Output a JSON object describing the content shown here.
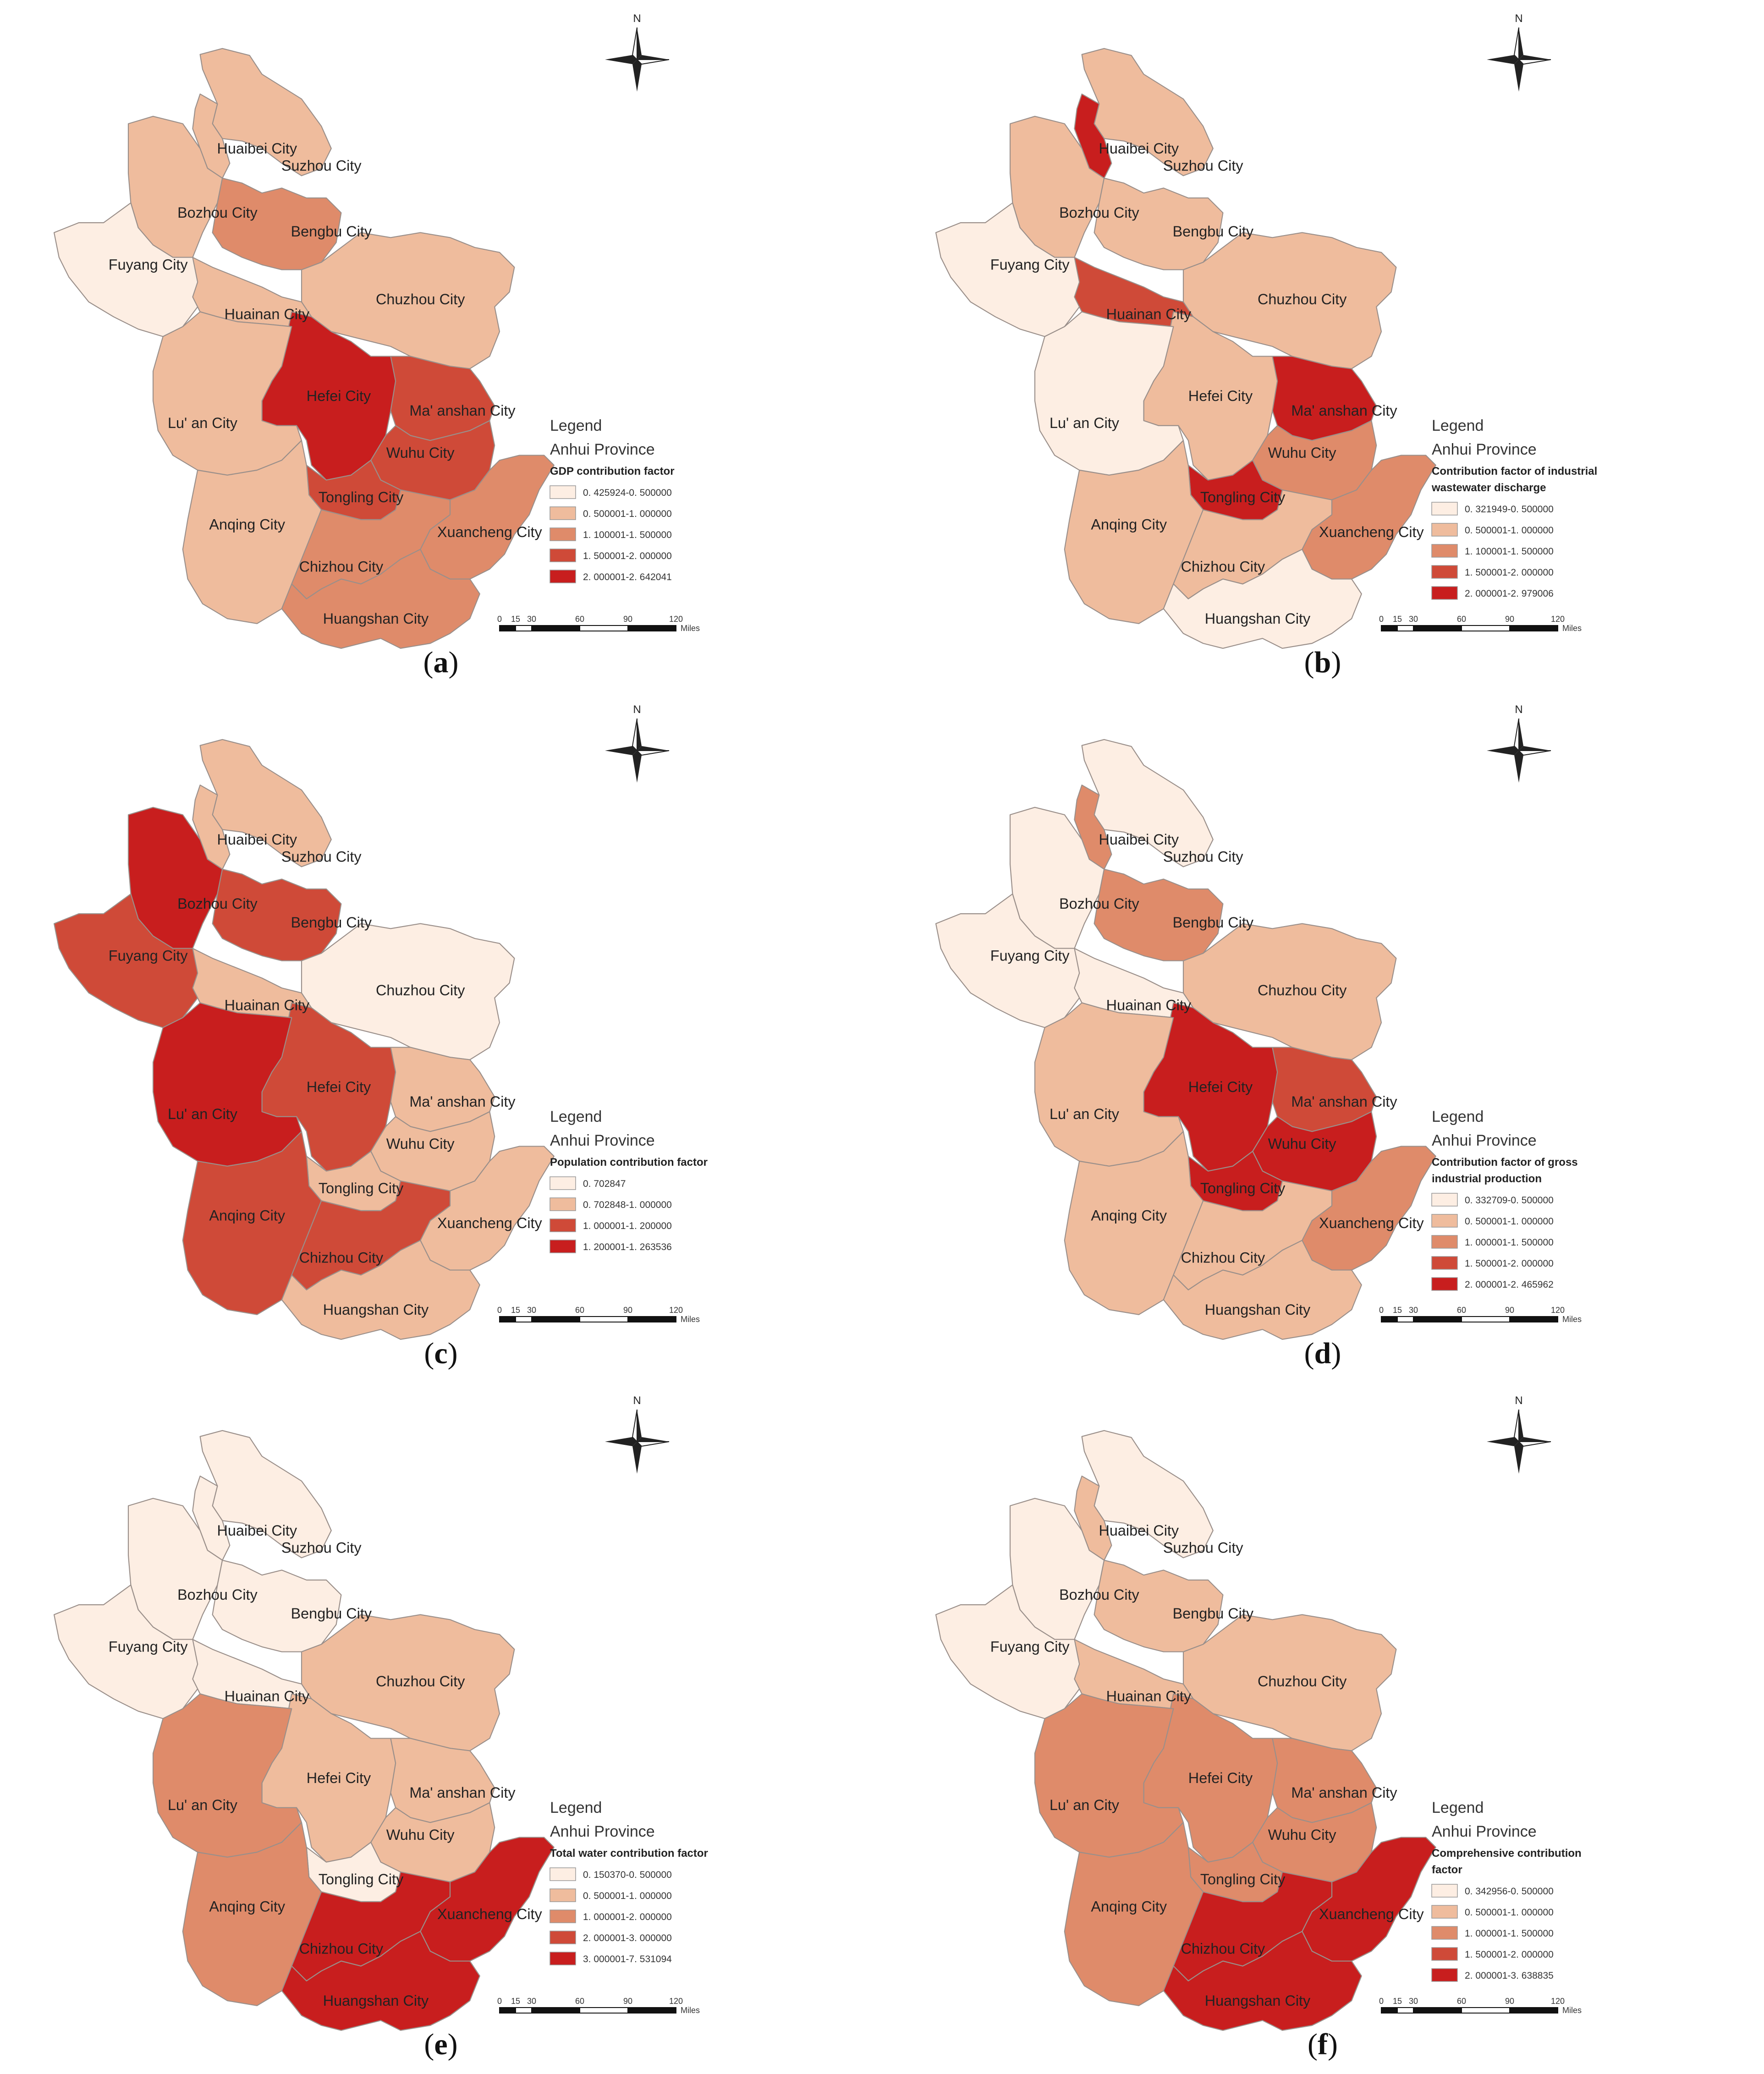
{
  "colors": {
    "class1": "#fdeee3",
    "class2": "#efbc9d",
    "class3": "#df8b6a",
    "class4": "#cf4a38",
    "class5": "#c81e1e",
    "border": "#9a8f8a"
  },
  "panels": [
    {
      "caption_open": "(",
      "caption_letter": "a",
      "caption_close": ")",
      "legend": {
        "title": "Legend",
        "region": "Anhui Province",
        "factor_lines": [
          "GDP contribution factor"
        ],
        "classes": [
          "0. 425924-0. 500000",
          "0. 500001-1. 000000",
          "1. 100001-1. 500000",
          "1. 500001-2. 000000",
          "2. 000001-2. 642041"
        ],
        "class_colors": [
          1,
          2,
          3,
          4,
          5
        ]
      },
      "city_classes": {
        "Huaibei City": 2,
        "Suzhou City": 2,
        "Bozhou City": 2,
        "Fuyang City": 1,
        "Bengbu City": 3,
        "Huainan City": 2,
        "Chuzhou City": 2,
        "Hefei City": 5,
        "Lu' an City": 2,
        "Ma' anshan City": 4,
        "Wuhu City": 4,
        "Tongling City": 4,
        "Anqing City": 2,
        "Chizhou City": 3,
        "Xuancheng City": 3,
        "Huangshan City": 3
      }
    },
    {
      "caption_open": "(",
      "caption_letter": "b",
      "caption_close": ")",
      "legend": {
        "title": "Legend",
        "region": "Anhui Province",
        "factor_lines": [
          "Contribution factor of industrial",
          "wastewater discharge"
        ],
        "classes": [
          "0. 321949-0. 500000",
          "0. 500001-1. 000000",
          "1. 100001-1. 500000",
          "1. 500001-2. 000000",
          "2. 000001-2. 979006"
        ],
        "class_colors": [
          1,
          2,
          3,
          4,
          5
        ]
      },
      "city_classes": {
        "Huaibei City": 5,
        "Suzhou City": 2,
        "Bozhou City": 2,
        "Fuyang City": 1,
        "Bengbu City": 2,
        "Huainan City": 4,
        "Chuzhou City": 2,
        "Hefei City": 2,
        "Lu' an City": 1,
        "Ma' anshan City": 5,
        "Wuhu City": 3,
        "Tongling City": 5,
        "Anqing City": 2,
        "Chizhou City": 2,
        "Xuancheng City": 3,
        "Huangshan City": 1
      }
    },
    {
      "caption_open": "(",
      "caption_letter": "c",
      "caption_close": ")",
      "legend": {
        "title": "Legend",
        "region": "Anhui Province",
        "factor_lines": [
          "Population contribution factor"
        ],
        "classes": [
          "0. 702847",
          "0. 702848-1. 000000",
          "1. 000001-1. 200000",
          "1. 200001-1. 263536"
        ],
        "class_colors": [
          1,
          2,
          4,
          5
        ]
      },
      "city_classes": {
        "Huaibei City": 2,
        "Suzhou City": 2,
        "Bozhou City": 5,
        "Fuyang City": 4,
        "Bengbu City": 4,
        "Huainan City": 2,
        "Chuzhou City": 1,
        "Hefei City": 4,
        "Lu' an City": 5,
        "Ma' anshan City": 2,
        "Wuhu City": 2,
        "Tongling City": 2,
        "Anqing City": 4,
        "Chizhou City": 4,
        "Xuancheng City": 2,
        "Huangshan City": 2
      }
    },
    {
      "caption_open": "(",
      "caption_letter": "d",
      "caption_close": ")",
      "legend": {
        "title": "Legend",
        "region": "Anhui Province",
        "factor_lines": [
          "Contribution factor of gross",
          "industrial production"
        ],
        "classes": [
          "0. 332709-0. 500000",
          "0. 500001-1. 000000",
          "1. 000001-1. 500000",
          "1. 500001-2. 000000",
          "2. 000001-2. 465962"
        ],
        "class_colors": [
          1,
          2,
          3,
          4,
          5
        ]
      },
      "city_classes": {
        "Huaibei City": 3,
        "Suzhou City": 1,
        "Bozhou City": 1,
        "Fuyang City": 1,
        "Bengbu City": 3,
        "Huainan City": 1,
        "Chuzhou City": 2,
        "Hefei City": 5,
        "Lu' an City": 2,
        "Ma' anshan City": 4,
        "Wuhu City": 5,
        "Tongling City": 5,
        "Anqing City": 2,
        "Chizhou City": 2,
        "Xuancheng City": 3,
        "Huangshan City": 2
      }
    },
    {
      "caption_open": "(",
      "caption_letter": "e",
      "caption_close": ")",
      "legend": {
        "title": "Legend",
        "region": "Anhui Province",
        "factor_lines": [
          "Total water contribution factor"
        ],
        "classes": [
          "0. 150370-0. 500000",
          "0. 500001-1. 000000",
          "1. 000001-2. 000000",
          "2. 000001-3. 000000",
          "3. 000001-7. 531094"
        ],
        "class_colors": [
          1,
          2,
          3,
          4,
          5
        ]
      },
      "city_classes": {
        "Huaibei City": 1,
        "Suzhou City": 1,
        "Bozhou City": 1,
        "Fuyang City": 1,
        "Bengbu City": 1,
        "Huainan City": 1,
        "Chuzhou City": 2,
        "Hefei City": 2,
        "Lu' an City": 3,
        "Ma' anshan City": 2,
        "Wuhu City": 2,
        "Tongling City": 1,
        "Anqing City": 3,
        "Chizhou City": 5,
        "Xuancheng City": 5,
        "Huangshan City": 5
      }
    },
    {
      "caption_open": "(",
      "caption_letter": "f",
      "caption_close": ")",
      "legend": {
        "title": "Legend",
        "region": "Anhui Province",
        "factor_lines": [
          "Comprehensive contribution",
          "factor"
        ],
        "classes": [
          "0. 342956-0. 500000",
          "0. 500001-1. 000000",
          "1. 000001-1. 500000",
          "1. 500001-2. 000000",
          "2. 000001-3. 638835"
        ],
        "class_colors": [
          1,
          2,
          3,
          4,
          5
        ]
      },
      "city_classes": {
        "Huaibei City": 2,
        "Suzhou City": 1,
        "Bozhou City": 1,
        "Fuyang City": 1,
        "Bengbu City": 2,
        "Huainan City": 2,
        "Chuzhou City": 2,
        "Hefei City": 3,
        "Lu' an City": 3,
        "Ma' anshan City": 3,
        "Wuhu City": 3,
        "Tongling City": 3,
        "Anqing City": 3,
        "Chizhou City": 5,
        "Xuancheng City": 5,
        "Huangshan City": 5
      }
    }
  ],
  "scale_bar": {
    "ticks": [
      "0",
      "15",
      "30",
      "60",
      "90",
      "120"
    ],
    "unit": "Miles"
  },
  "north_label": "N"
}
